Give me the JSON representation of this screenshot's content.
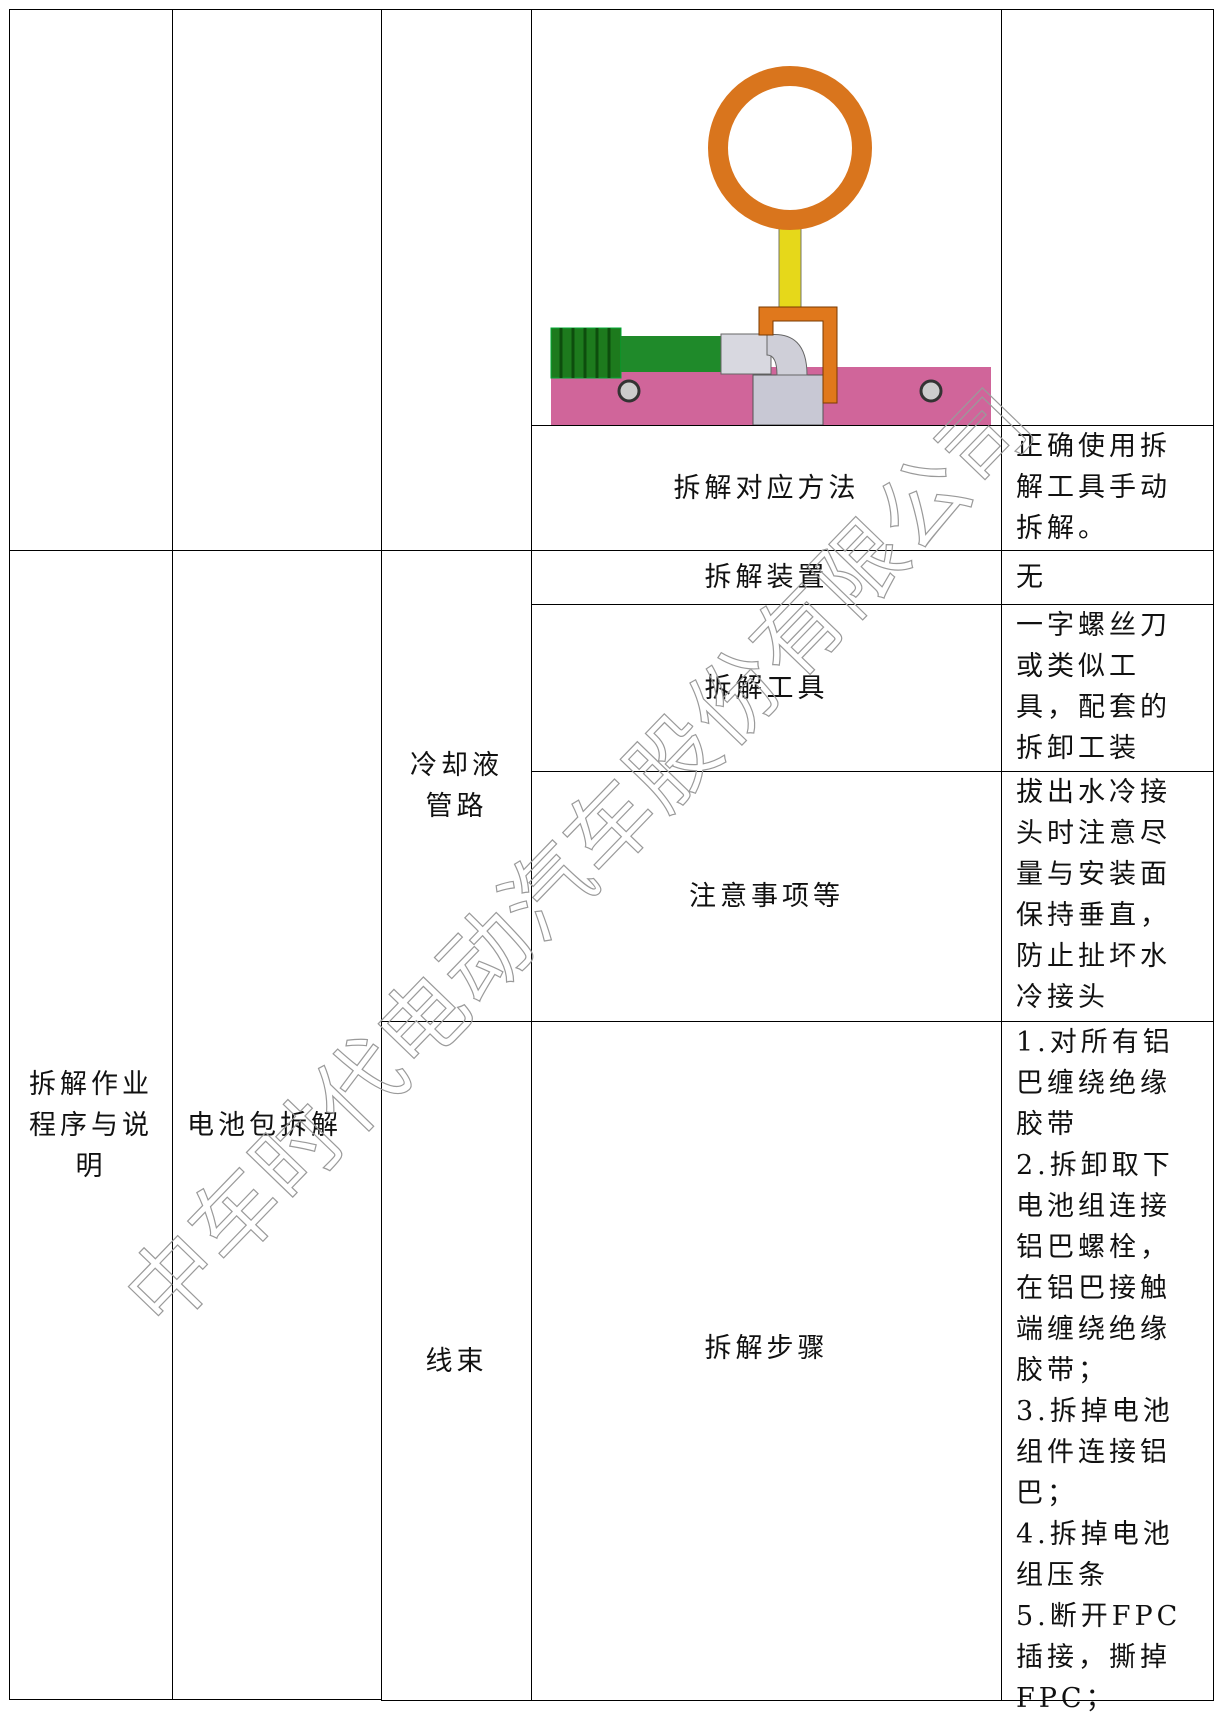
{
  "table": {
    "top": {
      "method_label": "拆解对应方法",
      "method_text": "正确使用拆解工具手动拆解。"
    },
    "section": {
      "category": "拆解作业程序与说明",
      "subcategory": "电池包拆解",
      "groups": [
        {
          "name": "冷却液管路",
          "items": [
            {
              "label": "拆解装置",
              "text": "无"
            },
            {
              "label": "拆解工具",
              "text": "一字螺丝刀或类似工具，配套的拆卸工装"
            },
            {
              "label": "注意事项等",
              "text": "拔出水冷接头时注意尽量与安装面保持垂直，防止扯坏水冷接头"
            }
          ]
        },
        {
          "name": "线束",
          "items": [
            {
              "label": "拆解步骤",
              "steps": [
                "1.对所有铝巴缠绕绝缘胶带",
                "2.拆卸取下电池组连接铝巴螺栓，在铝巴接触端缠绕绝缘胶带；",
                "3.拆掉电池组件连接铝巴；",
                "4.拆掉电池组压条",
                "5.断开FPC插接，撕掉FPC；"
              ]
            }
          ]
        }
      ]
    }
  },
  "watermark": "中车时代电动汽车股份有限公司"
}
